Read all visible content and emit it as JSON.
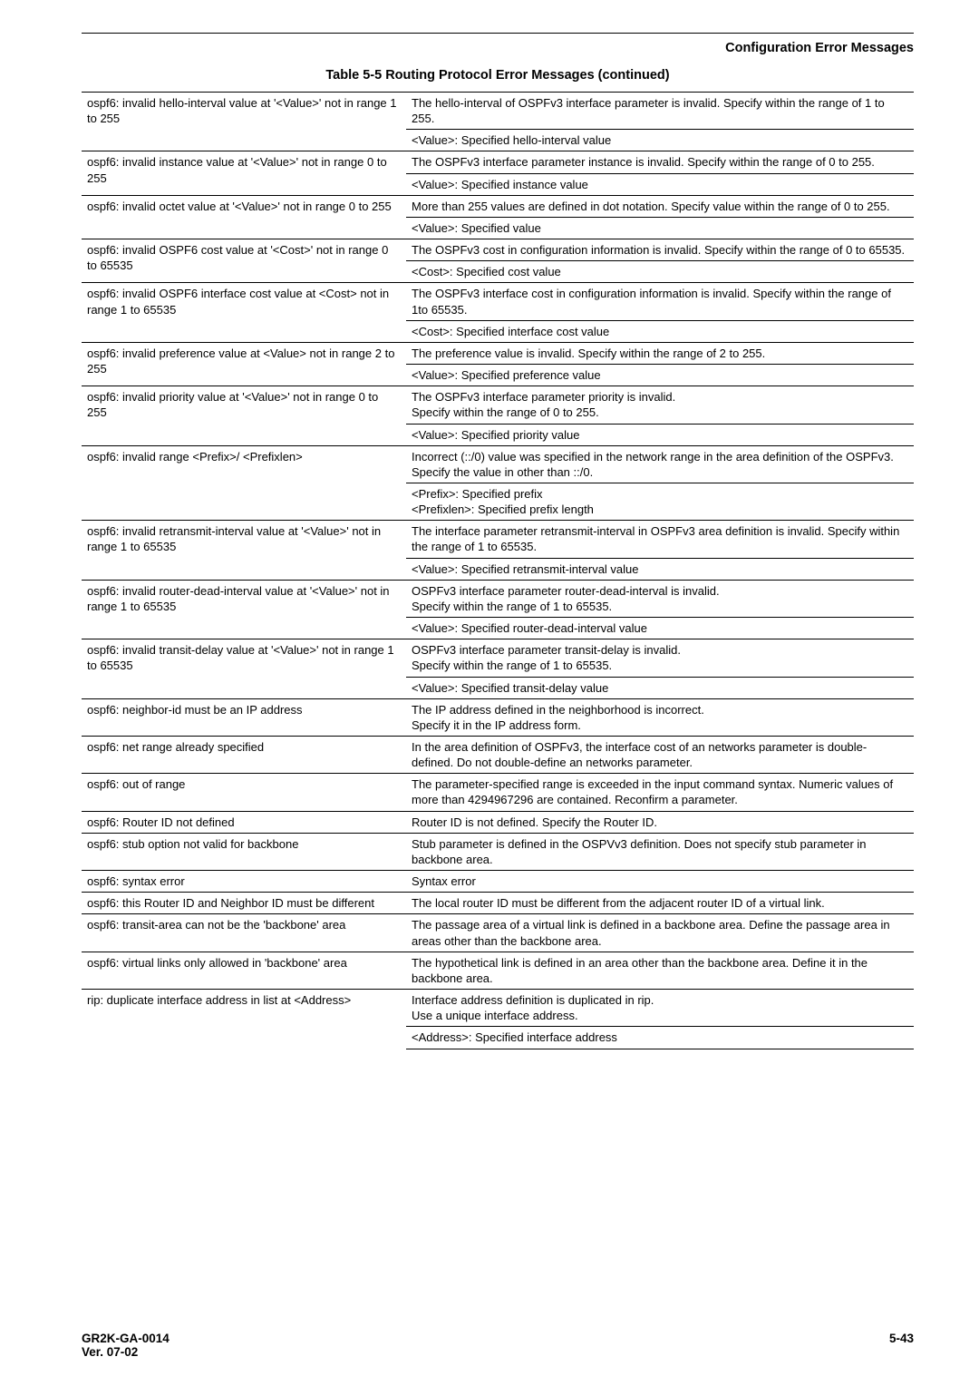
{
  "header": {
    "title": "Configuration Error Messages"
  },
  "caption": "Table 5-5    Routing Protocol Error Messages (continued)",
  "footer": {
    "code": "GR2K-GA-0014",
    "ver": "Ver. 07-02",
    "page": "5-43"
  },
  "rows": [
    {
      "l": "ospf6: invalid hello-interval value at '<Value>' not in range 1 to 255",
      "r1": "The hello-interval of OSPFv3 interface parameter is invalid. Specify within the range of 1 to 255.",
      "r2": "<Value>: Specified hello-interval value"
    },
    {
      "l": "ospf6: invalid instance value at '<Value>' not in range 0 to 255",
      "r1": "The OSPFv3 interface parameter instance is invalid. Specify within the range of 0 to 255.",
      "r2": "<Value>: Specified instance value"
    },
    {
      "l": "ospf6: invalid octet value at '<Value>' not in range 0 to 255",
      "r1": "More than 255 values are defined in dot notation. Specify value within the range of 0 to 255.",
      "r2": "<Value>: Specified value"
    },
    {
      "l": "ospf6: invalid OSPF6 cost value at '<Cost>' not in range 0 to 65535",
      "r1": "The OSPFv3 cost in configuration information is invalid. Specify within the range of 0 to 65535.",
      "r2": "<Cost>: Specified cost value"
    },
    {
      "l": "ospf6: invalid OSPF6 interface cost value at <Cost> not in range 1 to 65535",
      "r1": "The OSPFv3 interface cost in configuration information is invalid. Specify within the range of 1to 65535.",
      "r2": "<Cost>: Specified interface cost value"
    },
    {
      "l": "ospf6: invalid preference value at <Value> not in range 2 to 255",
      "r1": "The preference value is invalid. Specify within the range of 2 to 255.",
      "r2": "<Value>: Specified preference value"
    },
    {
      "l": "ospf6: invalid priority value at '<Value>' not in range 0 to 255",
      "r1": "The OSPFv3 interface parameter priority is invalid.\nSpecify within the range of 0 to 255.",
      "r2": "<Value>: Specified priority value"
    },
    {
      "l": "ospf6: invalid range <Prefix>/ <Prefixlen>",
      "r1": "Incorrect (::/0) value was specified in the network range in the area definition of the OSPFv3. Specify the value in other than ::/0.",
      "r2": "<Prefix>: Specified prefix\n<Prefixlen>: Specified prefix length"
    },
    {
      "l": "ospf6: invalid retransmit-interval value at '<Value>' not in range 1 to 65535",
      "r1": "The interface parameter retransmit-interval in OSPFv3 area definition is invalid. Specify within the range of 1 to 65535.",
      "r2": "<Value>: Specified retransmit-interval value"
    },
    {
      "l": "ospf6: invalid router-dead-interval value at '<Value>' not in range 1 to 65535",
      "r1": "OSPFv3 interface parameter router-dead-interval is invalid.\nSpecify within the range of 1 to 65535.",
      "r2": "<Value>: Specified router-dead-interval value"
    },
    {
      "l": "ospf6: invalid transit-delay value at '<Value>' not in range 1 to 65535",
      "r1": "OSPFv3 interface parameter transit-delay is invalid.\nSpecify within the range of 1 to 65535.",
      "r2": "<Value>: Specified transit-delay value"
    },
    {
      "l": "ospf6: neighbor-id must be an IP address",
      "r1": "The IP address defined in the neighborhood is incorrect.\nSpecify it in the IP address form."
    },
    {
      "l": "ospf6: net range already specified",
      "r1": "In the area definition of OSPFv3, the interface cost of an networks parameter is double-defined. Do not double-define an networks parameter."
    },
    {
      "l": "ospf6: out of range",
      "r1": "The parameter-specified range is exceeded in the input command syntax. Numeric values of more than 4294967296 are contained. Reconfirm a parameter."
    },
    {
      "l": "ospf6: Router ID not defined",
      "r1": "Router ID is not defined. Specify the Router ID."
    },
    {
      "l": "ospf6: stub option not valid for backbone",
      "r1": "Stub parameter is defined in the OSPVv3 definition. Does not specify stub parameter in backbone area."
    },
    {
      "l": "ospf6: syntax error",
      "r1": "Syntax error"
    },
    {
      "l": "ospf6: this Router ID and Neighbor ID must be different",
      "r1": "The local router ID must be different from the adjacent router ID of a virtual link."
    },
    {
      "l": "ospf6: transit-area can not be the 'backbone' area",
      "r1": "The passage area of a virtual link is defined in a backbone area. Define the passage area in areas other than the backbone area."
    },
    {
      "l": "ospf6: virtual links only allowed in 'backbone' area",
      "r1": "The hypothetical link is defined in an area other than the backbone area. Define it in the backbone area."
    },
    {
      "l": "rip: duplicate interface address in list at <Address>",
      "r1": "Interface address definition is duplicated in rip.\nUse a unique interface address.",
      "r2": "<Address>: Specified interface address"
    }
  ]
}
